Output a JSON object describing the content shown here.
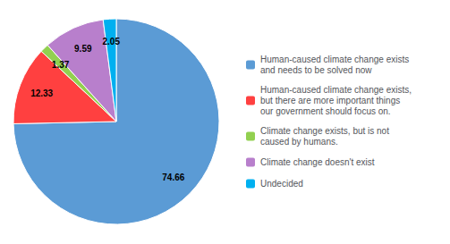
{
  "chart_data": {
    "type": "pie",
    "categories": [
      "Human-caused climate change exists\nand needs to be solved now",
      "Human-caused climate change exists,\nbut there are more important things\nour government should focus on.",
      "Climate change exists, but is not\ncaused by humans.",
      "Climate change doesn't exist",
      "Undecided"
    ],
    "values": [
      74.66,
      12.33,
      1.37,
      9.59,
      2.05
    ],
    "colors": [
      "#5B9BD5",
      "#FF4040",
      "#92D050",
      "#B87FCC",
      "#00B0F0"
    ],
    "data_labels": true,
    "legend": "right"
  }
}
